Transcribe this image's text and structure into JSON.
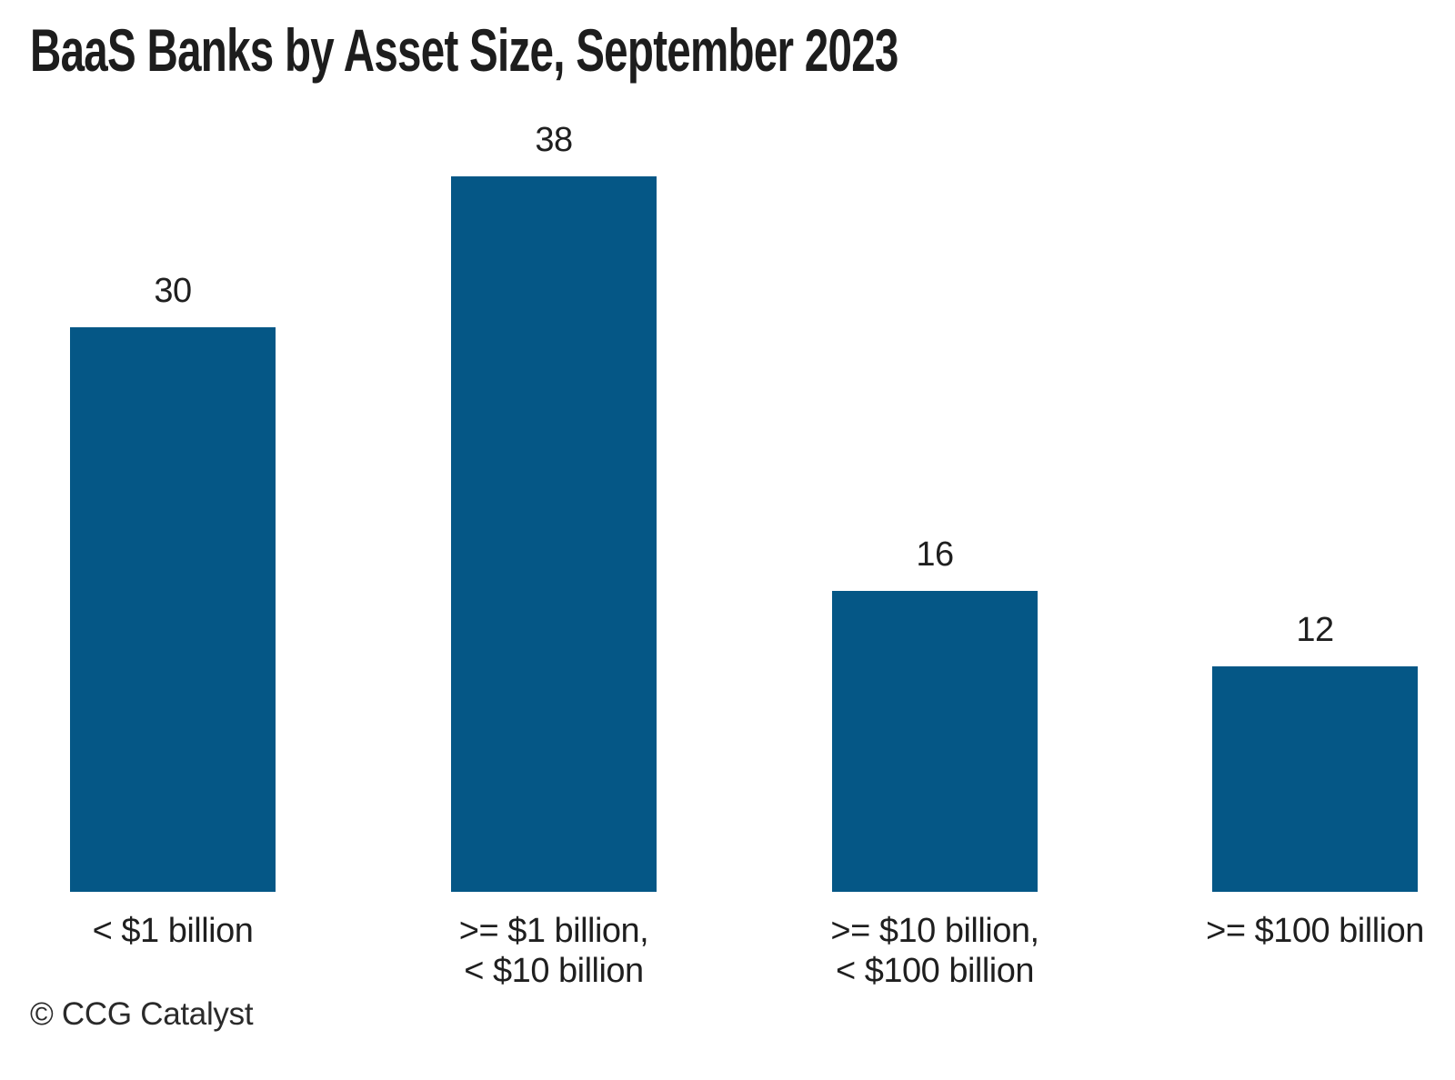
{
  "title": "BaaS Banks by Asset Size, September 2023",
  "source_note": "© CCG Catalyst",
  "colors": {
    "background": "#ffffff",
    "bar": "#055786",
    "title_text": "#1d1d1d",
    "label_text": "#1f1f1f",
    "source_text": "#2a2a2a"
  },
  "chart_data": {
    "type": "bar",
    "title": "BaaS Banks by Asset Size, September 2023",
    "categories": [
      "< $1 billion",
      ">= $1 billion,\n< $10 billion",
      ">= $10 billion,\n< $100 billion",
      ">= $100 billion"
    ],
    "values": [
      30,
      38,
      16,
      12
    ],
    "xlabel": "",
    "ylabel": "",
    "ylim": [
      0,
      40
    ],
    "grid": false,
    "legend": false,
    "axis_lines": false,
    "value_labels_shown": true,
    "bar_color": "#055786",
    "source": "© CCG Catalyst"
  }
}
